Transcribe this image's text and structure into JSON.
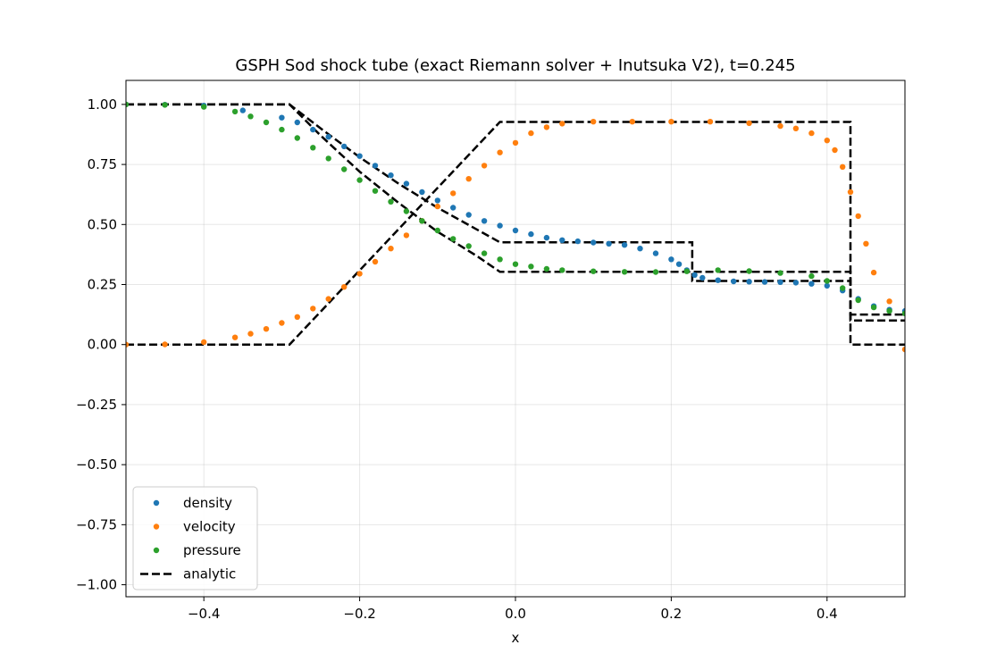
{
  "chart_data": {
    "type": "scatter",
    "title": "GSPH Sod shock tube (exact Riemann solver + Inutsuka V2), t=0.245",
    "xlabel": "x",
    "ylabel": "",
    "xlim": [
      -0.5,
      0.5
    ],
    "ylim": [
      -1.05,
      1.1
    ],
    "xticks": [
      -0.4,
      -0.2,
      0.0,
      0.2,
      0.4
    ],
    "xtick_labels": [
      "−0.4",
      "−0.2",
      "0.0",
      "0.2",
      "0.4"
    ],
    "yticks": [
      -1.0,
      -0.75,
      -0.5,
      -0.25,
      0.0,
      0.25,
      0.5,
      0.75,
      1.0
    ],
    "ytick_labels": [
      "−1.00",
      "−0.75",
      "−0.50",
      "−0.25",
      "0.00",
      "0.25",
      "0.50",
      "0.75",
      "1.00"
    ],
    "grid": true,
    "legend_position": "lower-left",
    "series": [
      {
        "name": "density",
        "kind": "scatter",
        "color": "#1f77b4",
        "points": [
          [
            -0.5,
            1.0
          ],
          [
            -0.45,
            0.999
          ],
          [
            -0.4,
            0.995
          ],
          [
            -0.35,
            0.975
          ],
          [
            -0.3,
            0.945
          ],
          [
            -0.28,
            0.925
          ],
          [
            -0.26,
            0.895
          ],
          [
            -0.24,
            0.865
          ],
          [
            -0.22,
            0.825
          ],
          [
            -0.2,
            0.785
          ],
          [
            -0.18,
            0.745
          ],
          [
            -0.16,
            0.705
          ],
          [
            -0.14,
            0.67
          ],
          [
            -0.12,
            0.635
          ],
          [
            -0.1,
            0.6
          ],
          [
            -0.08,
            0.57
          ],
          [
            -0.06,
            0.54
          ],
          [
            -0.04,
            0.515
          ],
          [
            -0.02,
            0.495
          ],
          [
            0.0,
            0.475
          ],
          [
            0.02,
            0.46
          ],
          [
            0.04,
            0.445
          ],
          [
            0.06,
            0.435
          ],
          [
            0.08,
            0.43
          ],
          [
            0.1,
            0.425
          ],
          [
            0.12,
            0.42
          ],
          [
            0.14,
            0.415
          ],
          [
            0.16,
            0.4
          ],
          [
            0.18,
            0.38
          ],
          [
            0.2,
            0.355
          ],
          [
            0.21,
            0.335
          ],
          [
            0.22,
            0.31
          ],
          [
            0.23,
            0.29
          ],
          [
            0.24,
            0.278
          ],
          [
            0.26,
            0.268
          ],
          [
            0.28,
            0.263
          ],
          [
            0.3,
            0.262
          ],
          [
            0.32,
            0.261
          ],
          [
            0.34,
            0.26
          ],
          [
            0.36,
            0.258
          ],
          [
            0.38,
            0.253
          ],
          [
            0.4,
            0.245
          ],
          [
            0.42,
            0.225
          ],
          [
            0.44,
            0.19
          ],
          [
            0.46,
            0.16
          ],
          [
            0.48,
            0.145
          ],
          [
            0.5,
            0.14
          ]
        ]
      },
      {
        "name": "velocity",
        "kind": "scatter",
        "color": "#ff7f0e",
        "points": [
          [
            -0.5,
            0.0
          ],
          [
            -0.45,
            0.001
          ],
          [
            -0.4,
            0.01
          ],
          [
            -0.36,
            0.03
          ],
          [
            -0.34,
            0.045
          ],
          [
            -0.32,
            0.065
          ],
          [
            -0.3,
            0.09
          ],
          [
            -0.28,
            0.115
          ],
          [
            -0.26,
            0.15
          ],
          [
            -0.24,
            0.19
          ],
          [
            -0.22,
            0.24
          ],
          [
            -0.2,
            0.295
          ],
          [
            -0.18,
            0.345
          ],
          [
            -0.16,
            0.4
          ],
          [
            -0.14,
            0.455
          ],
          [
            -0.12,
            0.515
          ],
          [
            -0.1,
            0.575
          ],
          [
            -0.08,
            0.63
          ],
          [
            -0.06,
            0.69
          ],
          [
            -0.04,
            0.745
          ],
          [
            -0.02,
            0.8
          ],
          [
            0.0,
            0.84
          ],
          [
            0.02,
            0.88
          ],
          [
            0.04,
            0.905
          ],
          [
            0.06,
            0.92
          ],
          [
            0.1,
            0.928
          ],
          [
            0.15,
            0.928
          ],
          [
            0.2,
            0.928
          ],
          [
            0.25,
            0.928
          ],
          [
            0.3,
            0.922
          ],
          [
            0.34,
            0.91
          ],
          [
            0.36,
            0.9
          ],
          [
            0.38,
            0.88
          ],
          [
            0.4,
            0.85
          ],
          [
            0.41,
            0.81
          ],
          [
            0.42,
            0.74
          ],
          [
            0.43,
            0.635
          ],
          [
            0.44,
            0.535
          ],
          [
            0.45,
            0.42
          ],
          [
            0.46,
            0.3
          ],
          [
            0.48,
            0.18
          ],
          [
            0.5,
            -0.02
          ]
        ]
      },
      {
        "name": "pressure",
        "kind": "scatter",
        "color": "#2ca02c",
        "points": [
          [
            -0.5,
            1.0
          ],
          [
            -0.45,
            0.998
          ],
          [
            -0.4,
            0.99
          ],
          [
            -0.36,
            0.97
          ],
          [
            -0.34,
            0.95
          ],
          [
            -0.32,
            0.925
          ],
          [
            -0.3,
            0.895
          ],
          [
            -0.28,
            0.86
          ],
          [
            -0.26,
            0.82
          ],
          [
            -0.24,
            0.775
          ],
          [
            -0.22,
            0.73
          ],
          [
            -0.2,
            0.685
          ],
          [
            -0.18,
            0.64
          ],
          [
            -0.16,
            0.595
          ],
          [
            -0.14,
            0.555
          ],
          [
            -0.12,
            0.515
          ],
          [
            -0.1,
            0.475
          ],
          [
            -0.08,
            0.44
          ],
          [
            -0.06,
            0.41
          ],
          [
            -0.04,
            0.38
          ],
          [
            -0.02,
            0.355
          ],
          [
            0.0,
            0.335
          ],
          [
            0.02,
            0.325
          ],
          [
            0.04,
            0.315
          ],
          [
            0.06,
            0.31
          ],
          [
            0.1,
            0.305
          ],
          [
            0.14,
            0.303
          ],
          [
            0.18,
            0.302
          ],
          [
            0.22,
            0.305
          ],
          [
            0.26,
            0.31
          ],
          [
            0.3,
            0.306
          ],
          [
            0.34,
            0.298
          ],
          [
            0.38,
            0.285
          ],
          [
            0.4,
            0.265
          ],
          [
            0.42,
            0.235
          ],
          [
            0.44,
            0.185
          ],
          [
            0.46,
            0.155
          ],
          [
            0.48,
            0.14
          ],
          [
            0.5,
            0.13
          ]
        ]
      },
      {
        "name": "analytic",
        "kind": "line",
        "color": "#000000",
        "style": "dashed",
        "curves": [
          [
            [
              -0.5,
              1.0
            ],
            [
              -0.29,
              1.0
            ],
            [
              -0.25,
              0.9
            ],
            [
              -0.2,
              0.78
            ],
            [
              -0.15,
              0.67
            ],
            [
              -0.1,
              0.57
            ],
            [
              -0.05,
              0.48
            ],
            [
              -0.02,
              0.426
            ],
            [
              0.227,
              0.426
            ],
            [
              0.227,
              0.265
            ],
            [
              0.43,
              0.265
            ],
            [
              0.43,
              0.125
            ],
            [
              0.5,
              0.125
            ]
          ],
          [
            [
              -0.5,
              0.0
            ],
            [
              -0.29,
              0.0
            ],
            [
              -0.02,
              0.927
            ],
            [
              0.43,
              0.927
            ],
            [
              0.43,
              0.0
            ],
            [
              0.5,
              0.0
            ]
          ],
          [
            [
              -0.5,
              1.0
            ],
            [
              -0.29,
              1.0
            ],
            [
              -0.25,
              0.87
            ],
            [
              -0.2,
              0.72
            ],
            [
              -0.15,
              0.59
            ],
            [
              -0.1,
              0.47
            ],
            [
              -0.05,
              0.37
            ],
            [
              -0.02,
              0.303
            ],
            [
              0.43,
              0.303
            ],
            [
              0.43,
              0.1
            ],
            [
              0.5,
              0.1
            ]
          ]
        ]
      }
    ]
  }
}
